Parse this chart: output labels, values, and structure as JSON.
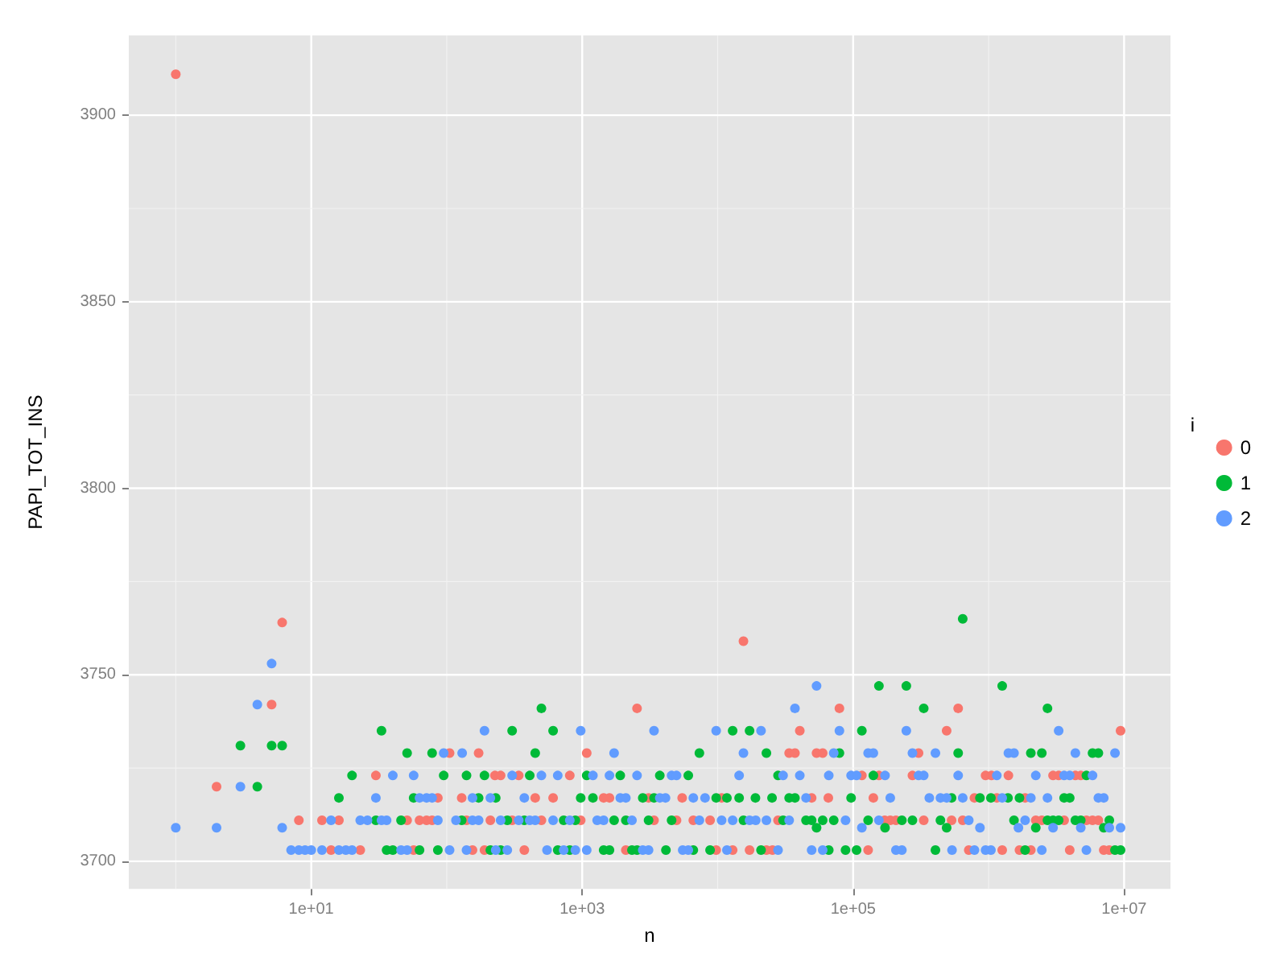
{
  "chart_data": {
    "type": "scatter",
    "xlabel": "n",
    "ylabel": "PAPI_TOT_INS",
    "legend_title": "i",
    "legend": "right",
    "grid": true,
    "marker": "circle",
    "log": "x",
    "xlim": [
      0.45,
      22000000
    ],
    "ylim": [
      3692.6,
      3921.4
    ],
    "xticks": [
      {
        "value": 1,
        "label": null
      },
      {
        "value": 10,
        "label": "1e+01"
      },
      {
        "value": 100,
        "label": null
      },
      {
        "value": 1000,
        "label": "1e+03"
      },
      {
        "value": 10000,
        "label": null
      },
      {
        "value": 100000,
        "label": "1e+05"
      },
      {
        "value": 1000000,
        "label": null
      },
      {
        "value": 10000000,
        "label": "1e+07"
      }
    ],
    "yticks": [
      3700,
      {
        "value": 3725,
        "label": null
      },
      3750,
      {
        "value": 3775,
        "label": null
      },
      3800,
      {
        "value": 3825,
        "label": null
      },
      3850,
      {
        "value": 3875,
        "label": null
      },
      3900
    ],
    "series": [
      {
        "name": "0",
        "color": "#f8766d",
        "x": [
          1,
          6.1,
          5.1,
          30,
          2,
          86,
          8.1,
          12,
          16,
          51,
          63,
          71,
          78,
          14,
          23,
          57,
          15500,
          2540,
          105,
          172,
          1080,
          33700,
          37200,
          227,
          250,
          340,
          810,
          129,
          450,
          610,
          1440,
          1590,
          3090,
          5470,
          10700,
          140,
          210,
          304,
          500,
          975,
          3390,
          4970,
          6610,
          8790,
          27900,
          155,
          190,
          374,
          2100,
          9750,
          12900,
          17200,
          22900,
          25400,
          79200,
          596000,
          40400,
          490000,
          9420000,
          53700,
          59600,
          304000,
          116000,
          155000,
          274000,
          950000,
          1050000,
          1400000,
          2990000,
          3290000,
          4370000,
          4790000,
          49400,
          65600,
          141000,
          786000,
          1150000,
          1860000,
          171000,
          188000,
          207000,
          332000,
          533000,
          644000,
          2230000,
          2470000,
          3610000,
          5270000,
          5850000,
          6460000,
          129000,
          714000,
          1260000,
          1690000,
          2050000,
          3970000,
          7080000,
          7780000
        ],
        "values": [
          3911,
          3764,
          3742,
          3723,
          3720,
          3717,
          3711,
          3711,
          3711,
          3711,
          3711,
          3711,
          3711,
          3703,
          3703,
          3703,
          3759,
          3741,
          3729,
          3729,
          3729,
          3729,
          3729,
          3723,
          3723,
          3723,
          3723,
          3717,
          3717,
          3717,
          3717,
          3717,
          3717,
          3717,
          3717,
          3711,
          3711,
          3711,
          3711,
          3711,
          3711,
          3711,
          3711,
          3711,
          3711,
          3703,
          3703,
          3703,
          3703,
          3703,
          3703,
          3703,
          3703,
          3703,
          3741,
          3741,
          3735,
          3735,
          3735,
          3729,
          3729,
          3729,
          3723,
          3723,
          3723,
          3723,
          3723,
          3723,
          3723,
          3723,
          3723,
          3723,
          3717,
          3717,
          3717,
          3717,
          3717,
          3717,
          3711,
          3711,
          3711,
          3711,
          3711,
          3711,
          3711,
          3711,
          3711,
          3711,
          3711,
          3711,
          3703,
          3703,
          3703,
          3703,
          3703,
          3703,
          3703,
          3703
        ]
      },
      {
        "name": "1",
        "color": "#00ba38",
        "x": [
          3,
          5.1,
          6.1,
          33,
          51,
          78,
          20,
          95,
          4,
          16,
          57,
          30,
          46,
          36,
          40,
          63,
          86,
          500,
          304,
          610,
          12900,
          17200,
          450,
          7330,
          22900,
          140,
          190,
          410,
          1080,
          1910,
          3740,
          6070,
          27900,
          172,
          230,
          975,
          1200,
          2800,
          3390,
          9750,
          11700,
          14400,
          19000,
          25200,
          33700,
          37200,
          129,
          280,
          374,
          730,
          890,
          1720,
          2100,
          3090,
          4570,
          15500,
          30400,
          210,
          250,
          660,
          810,
          1440,
          1590,
          2330,
          2540,
          4150,
          6610,
          8790,
          20900,
          644000,
          155000,
          247000,
          1260000,
          332000,
          2720000,
          116000,
          79200,
          596000,
          2050000,
          2470000,
          5850000,
          6460000,
          141000,
          5270000,
          96600,
          533000,
          863000,
          1040000,
          1390000,
          1690000,
          3610000,
          3970000,
          44900,
          49400,
          59600,
          71900,
          129000,
          229000,
          274000,
          441000,
          1540000,
          2720000,
          2990000,
          3290000,
          4370000,
          4790000,
          7780000,
          53700,
          172000,
          490000,
          2230000,
          7080000,
          66100,
          87900,
          106000,
          405000,
          1860000,
          8570000,
          9420000
        ],
        "values": [
          3731,
          3731,
          3731,
          3735,
          3729,
          3729,
          3723,
          3723,
          3720,
          3717,
          3717,
          3711,
          3711,
          3703,
          3703,
          3703,
          3703,
          3741,
          3735,
          3735,
          3735,
          3735,
          3729,
          3729,
          3729,
          3723,
          3723,
          3723,
          3723,
          3723,
          3723,
          3723,
          3723,
          3717,
          3717,
          3717,
          3717,
          3717,
          3717,
          3717,
          3717,
          3717,
          3717,
          3717,
          3717,
          3717,
          3711,
          3711,
          3711,
          3711,
          3711,
          3711,
          3711,
          3711,
          3711,
          3711,
          3711,
          3703,
          3703,
          3703,
          3703,
          3703,
          3703,
          3703,
          3703,
          3703,
          3703,
          3703,
          3703,
          3765,
          3747,
          3747,
          3747,
          3741,
          3741,
          3735,
          3729,
          3729,
          3729,
          3729,
          3729,
          3729,
          3723,
          3723,
          3717,
          3717,
          3717,
          3717,
          3717,
          3717,
          3717,
          3717,
          3711,
          3711,
          3711,
          3711,
          3711,
          3711,
          3711,
          3711,
          3711,
          3711,
          3711,
          3711,
          3711,
          3711,
          3711,
          3709,
          3709,
          3709,
          3709,
          3709,
          3703,
          3703,
          3703,
          3703,
          3703,
          3703,
          3703
        ]
      },
      {
        "name": "2",
        "color": "#619cff",
        "x": [
          1,
          2,
          6.1,
          5.1,
          4,
          3,
          95,
          40,
          57,
          30,
          63,
          71,
          78,
          14,
          23,
          26,
          33,
          36,
          86,
          7.1,
          8.1,
          9,
          10,
          12,
          16,
          18,
          20,
          46,
          51,
          37200,
          190,
          975,
          3390,
          9750,
          20900,
          130,
          1720,
          15500,
          304,
          500,
          660,
          1200,
          1590,
          2540,
          4570,
          4970,
          14400,
          30400,
          155,
          210,
          374,
          1910,
          2100,
          3740,
          4120,
          6610,
          8070,
          117,
          155,
          172,
          250,
          340,
          410,
          450,
          610,
          810,
          1290,
          1440,
          2330,
          7330,
          10700,
          12900,
          17200,
          19100,
          22900,
          33700,
          105,
          140,
          230,
          280,
          550,
          730,
          890,
          1080,
          2800,
          3090,
          5520,
          6070,
          11700,
          27900,
          53700,
          79200,
          247000,
          3290000,
          71900,
          129000,
          141000,
          274000,
          405000,
          1400000,
          1540000,
          4370000,
          8570000,
          40400,
          66100,
          96600,
          106000,
          172000,
          304000,
          332000,
          596000,
          1150000,
          2230000,
          3610000,
          3970000,
          5850000,
          44900,
          188000,
          365000,
          441000,
          490000,
          644000,
          1260000,
          2050000,
          2720000,
          6460000,
          7080000,
          87900,
          155000,
          714000,
          1860000,
          116000,
          863000,
          1660000,
          2990000,
          4790000,
          7780000,
          9420000,
          49400,
          59600,
          207000,
          229000,
          537000,
          786000,
          950000,
          1040000,
          2470000,
          5270000
        ],
        "values": [
          3709,
          3709,
          3709,
          3753,
          3742,
          3720,
          3729,
          3723,
          3723,
          3717,
          3717,
          3717,
          3717,
          3711,
          3711,
          3711,
          3711,
          3711,
          3711,
          3703,
          3703,
          3703,
          3703,
          3703,
          3703,
          3703,
          3703,
          3703,
          3703,
          3741,
          3735,
          3735,
          3735,
          3735,
          3735,
          3729,
          3729,
          3729,
          3723,
          3723,
          3723,
          3723,
          3723,
          3723,
          3723,
          3723,
          3723,
          3723,
          3717,
          3717,
          3717,
          3717,
          3717,
          3717,
          3717,
          3717,
          3717,
          3711,
          3711,
          3711,
          3711,
          3711,
          3711,
          3711,
          3711,
          3711,
          3711,
          3711,
          3711,
          3711,
          3711,
          3711,
          3711,
          3711,
          3711,
          3711,
          3703,
          3703,
          3703,
          3703,
          3703,
          3703,
          3703,
          3703,
          3703,
          3703,
          3703,
          3703,
          3703,
          3703,
          3747,
          3735,
          3735,
          3735,
          3729,
          3729,
          3729,
          3729,
          3729,
          3729,
          3729,
          3729,
          3729,
          3723,
          3723,
          3723,
          3723,
          3723,
          3723,
          3723,
          3723,
          3723,
          3723,
          3723,
          3723,
          3723,
          3717,
          3717,
          3717,
          3717,
          3717,
          3717,
          3717,
          3717,
          3717,
          3717,
          3717,
          3711,
          3711,
          3711,
          3711,
          3709,
          3709,
          3709,
          3709,
          3709,
          3709,
          3709,
          3703,
          3703,
          3703,
          3703,
          3703,
          3703,
          3703,
          3703,
          3703,
          3703
        ]
      }
    ]
  }
}
